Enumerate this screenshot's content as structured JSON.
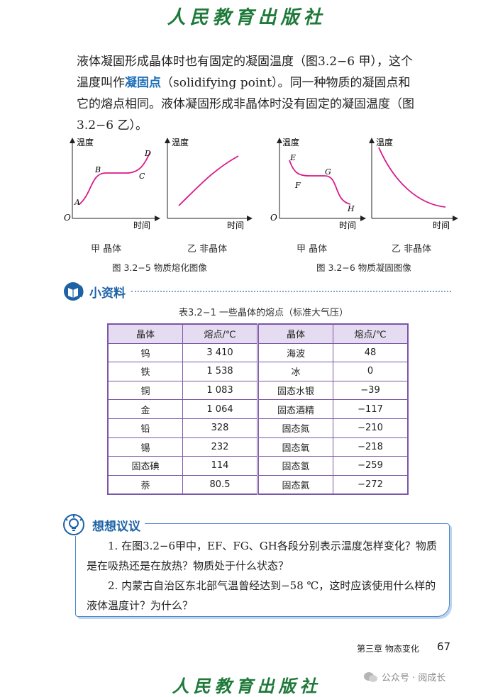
{
  "header": {
    "brand": "人民教育出版社"
  },
  "paragraph": {
    "part1": "液体凝固形成晶体时也有固定的凝固温度（图3.2−6 甲），这个温度叫作",
    "term": "凝固点",
    "part2": "（solidifying point）。同一种物质的凝固点和它的熔点相同。液体凝固形成非晶体时没有固定的凝固温度（图3.2−6 乙）。"
  },
  "graphs": {
    "y_label": "温度",
    "x_label": "时间",
    "origin": "O",
    "melting_crystal_sub": "甲  晶体",
    "melting_amorphous_sub": "乙  非晶体",
    "solid_crystal_sub": "甲  晶体",
    "solid_amorphous_sub": "乙  非晶体",
    "melting_points": {
      "A": "A",
      "B": "B",
      "C": "C",
      "D": "D"
    },
    "solid_points": {
      "E": "E",
      "F": "F",
      "G": "G",
      "H": "H"
    },
    "fig5_caption": "图 3.2−5   物质熔化图像",
    "fig6_caption": "图 3.2−6   物质凝固图像"
  },
  "info_section": {
    "title": "小资料"
  },
  "table": {
    "caption": "表3.2−1   一些晶体的熔点（标准大气压）",
    "headers": [
      "晶体",
      "熔点/℃",
      "晶体",
      "熔点/℃"
    ],
    "rows": [
      [
        "钨",
        "3 410",
        "海波",
        "48"
      ],
      [
        "铁",
        "1 538",
        "冰",
        "0"
      ],
      [
        "铜",
        "1 083",
        "固态水银",
        "−39"
      ],
      [
        "金",
        "1 064",
        "固态酒精",
        "−117"
      ],
      [
        "铅",
        "328",
        "固态氮",
        "−210"
      ],
      [
        "锡",
        "232",
        "固态氧",
        "−218"
      ],
      [
        "固态碘",
        "114",
        "固态氢",
        "−259"
      ],
      [
        "萘",
        "80.5",
        "固态氦",
        "−272"
      ]
    ]
  },
  "think_section": {
    "title": "想想议议",
    "q1": "1. 在图3.2−6甲中，EF、FG、GH各段分别表示温度怎样变化？物质是在吸热还是在放热？物质处于什么状态？",
    "q2": "2. 内蒙古自治区东北部气温曾经达到−58 ℃，这时应该使用什么样的液体温度计？为什么？"
  },
  "footer": {
    "chapter": "第三章   物态变化",
    "page_number": "67",
    "watermark": "公众号 · 阅成长",
    "brand": "人民教育出版社"
  },
  "colors": {
    "curve": "#d81b8c",
    "accent": "#1e62a6",
    "table_border": "#7a55a8",
    "table_header": "#e6dcf1"
  }
}
